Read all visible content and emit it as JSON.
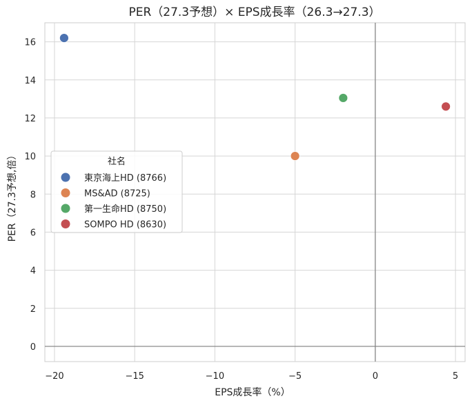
{
  "chart_data": {
    "type": "scatter",
    "title": "PER（27.3予想）× EPS成長率（26.3→27.3）",
    "xlabel": "EPS成長率（%）",
    "ylabel": "PER（27.3予想,倍）",
    "xlim": [
      -20.6,
      5.6
    ],
    "ylim": [
      -0.8,
      17.0
    ],
    "xticks": [
      -20,
      -15,
      -10,
      -5,
      0,
      5
    ],
    "xtick_labels": [
      "−20",
      "−15",
      "−10",
      "−5",
      "0",
      "5"
    ],
    "yticks": [
      0,
      2,
      4,
      6,
      8,
      10,
      12,
      14,
      16
    ],
    "ytick_labels": [
      "0",
      "2",
      "4",
      "6",
      "8",
      "10",
      "12",
      "14",
      "16"
    ],
    "grid": true,
    "reference_lines": {
      "x": 0,
      "y": 0
    },
    "legend": {
      "title": "社名",
      "placement": "center-left"
    },
    "series": [
      {
        "name": "東京海上HD (8766)",
        "color": "#4c72b0",
        "x": [
          -19.4
        ],
        "y": [
          16.2
        ]
      },
      {
        "name": "MS&AD (8725)",
        "color": "#dd8452",
        "x": [
          -5.0
        ],
        "y": [
          10.0
        ]
      },
      {
        "name": "第一生命HD (8750)",
        "color": "#55a868",
        "x": [
          -2.0
        ],
        "y": [
          13.05
        ]
      },
      {
        "name": "SOMPO HD (8630)",
        "color": "#c44e52",
        "x": [
          4.4
        ],
        "y": [
          12.6
        ]
      }
    ]
  }
}
